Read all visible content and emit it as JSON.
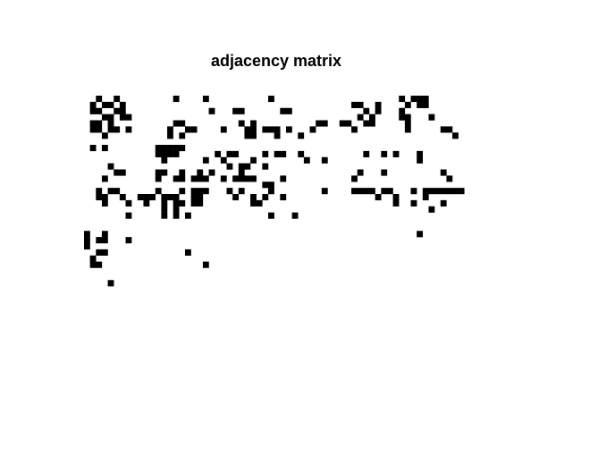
{
  "chart_data": {
    "type": "heatmap",
    "title": "adjacency matrix",
    "xlabel": "",
    "ylabel": "",
    "grid": false,
    "axes_visible": false,
    "colormap": {
      "0": "#ffffff",
      "1": "#000000"
    },
    "n_rows": 40,
    "n_cols": 65,
    "matrix": [
      "00100100000000010000100000000001000000000000000000000101110000000",
      "01011010000000000000000000000000000000000000011001000010110000000",
      "01100110000000000000010001100000011000000000000101000100000000000",
      "00011011000000000000000000000000000000000000001010000110001000000",
      "01101000000000011000000000101000000000011001100110000010000000000",
      "01101101000000100110000100011011101000100000010000000010000011000",
      "00010000000000101000000000011000100010000000000000000000000000100",
      "00000000000000000000000000000000000000000000000000000000000000000",
      "01010000000011111000000000000000000000000000000000000000000000000",
      "00000000000011110000001011000010110010000000000100101000100000000",
      "00000000000001000000100100001000000001001000000000000000100000000",
      "00001000000000000000000010110010000000000000000000000000000000000",
      "00000110000011001001010000100000000000000000001000100000000010000",
      "00010000000010011011100101111000010000000000010000000000000001000",
      "00000000000000000000000000000011000000000000000000000000000000000",
      "00101100000010001011100010100001000000001000011110110001011111110",
      "00110010011101110011000001001010010000000000000001001000010000000",
      "00010001001001011011000000001100000000000000000000001001000010000",
      "00000000000001010000000000000000000000000000000000000000001000000",
      "00000001000001010100000000000001000100000000000000000000000000000",
      "00000000000000000000000000000000000000000000000000000000000000000",
      "00000000000000000000000000000000000000000000000000000000000000000",
      "10010000000000000000000000000000000000000000000000000000100000000",
      "10110001000000000000000000000000000000000000000000000000000000000",
      "10000000000000000000000000000000000000000000000000000000000000000",
      "00110000000000000100000000000000000000000000000000000000000000000",
      "01000000000000000000000000000000000000000000000000000000000000000",
      "01100000000000000000100000000000000000000000000000000000000000000",
      "00000000000000000000000000000000000000000000000000000000000000000",
      "00000000000000000000000000000000000000000000000000000000000000000",
      "00001000000000000000000000000000000000000000000000000000000000000",
      "00000000000000000000000000000000000000000000000000000000000000000",
      "00000000000000000000000000000000000000000000000000000000000000000",
      "00000000000000000000000000000000000000000000000000000000000000000",
      "00000000000000000000000000000000000000000000000000000000000000000",
      "00000000000000000000000000000000000000000000000000000000000000000",
      "00000000000000000000000000000000000000000000000000000000000000000",
      "00000000000000000000000000000000000000000000000000000000000000000",
      "00000000000000000000000000000000000000000000000000000000000000000",
      "00000000000000000000000000000000000000000000000000000000000000000"
    ]
  }
}
